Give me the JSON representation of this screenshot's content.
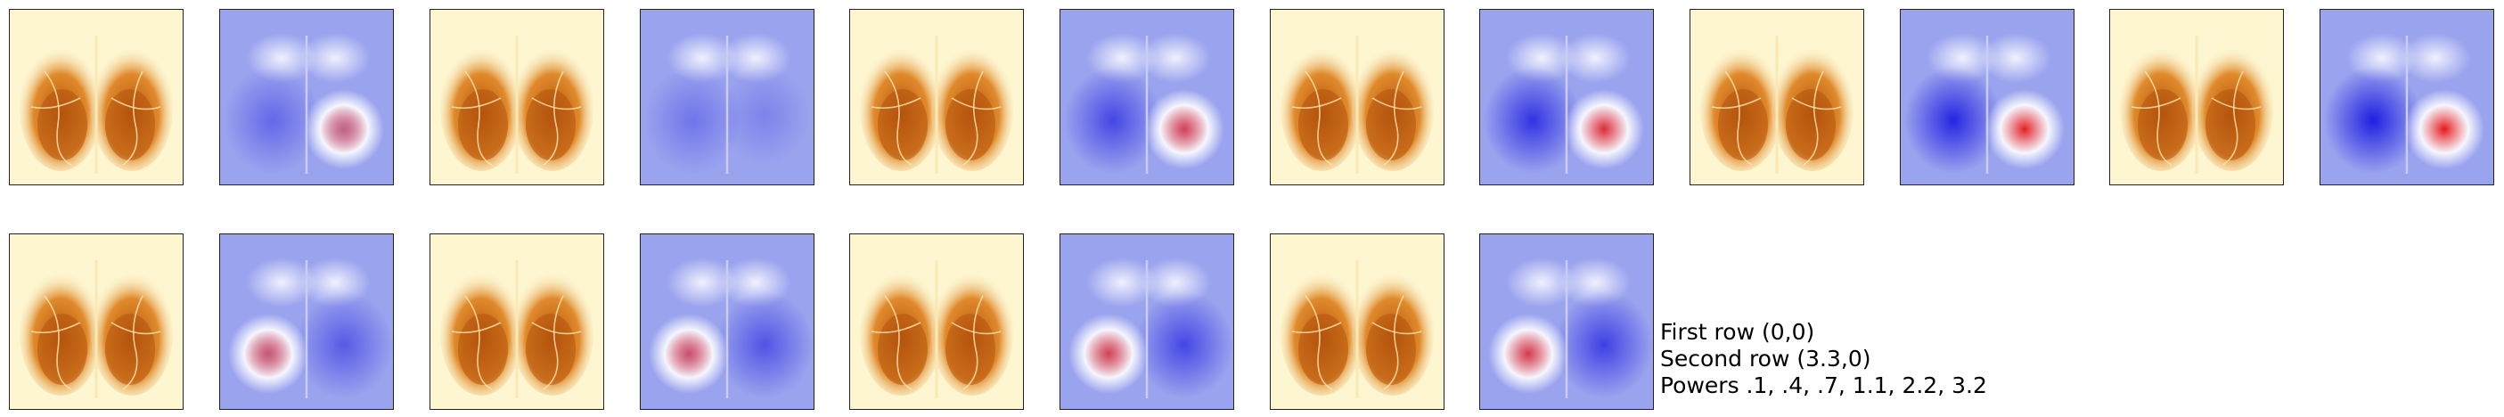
{
  "figure": {
    "rows": [
      {
        "name": "row-1",
        "panels": [
          {
            "kind": "anatomy"
          },
          {
            "kind": "diverging",
            "intensity": 0.45,
            "red_side": "right"
          },
          {
            "kind": "anatomy"
          },
          {
            "kind": "diverging",
            "intensity": 0.35,
            "red_side": "none"
          },
          {
            "kind": "anatomy"
          },
          {
            "kind": "diverging",
            "intensity": 0.7,
            "red_side": "right"
          },
          {
            "kind": "anatomy"
          },
          {
            "kind": "diverging",
            "intensity": 0.85,
            "red_side": "right"
          },
          {
            "kind": "anatomy"
          },
          {
            "kind": "diverging",
            "intensity": 0.95,
            "red_side": "right"
          },
          {
            "kind": "anatomy"
          },
          {
            "kind": "diverging",
            "intensity": 1.0,
            "red_side": "right"
          }
        ]
      },
      {
        "name": "row-2",
        "panels": [
          {
            "kind": "anatomy"
          },
          {
            "kind": "diverging",
            "intensity": 0.55,
            "red_side": "left"
          },
          {
            "kind": "anatomy"
          },
          {
            "kind": "diverging",
            "intensity": 0.6,
            "red_side": "left"
          },
          {
            "kind": "anatomy"
          },
          {
            "kind": "diverging",
            "intensity": 0.7,
            "red_side": "left"
          },
          {
            "kind": "anatomy"
          },
          {
            "kind": "diverging",
            "intensity": 0.75,
            "red_side": "left"
          }
        ]
      }
    ],
    "colors": {
      "anatomy_background": "#fdf6d0",
      "anatomy_dark": "#b5530c",
      "anatomy_mid": "#e08a2c",
      "diverging_background": "#9aa3ee",
      "diverging_blue": "#1f1fe0",
      "diverging_red": "#e81818",
      "diverging_white": "#ffffff"
    }
  },
  "caption": {
    "line1": "First row (0,0)",
    "line2": "Second row (3.3,0)",
    "line3": "Powers .1, .4, .7, 1.1, 2.2, 3.2"
  }
}
